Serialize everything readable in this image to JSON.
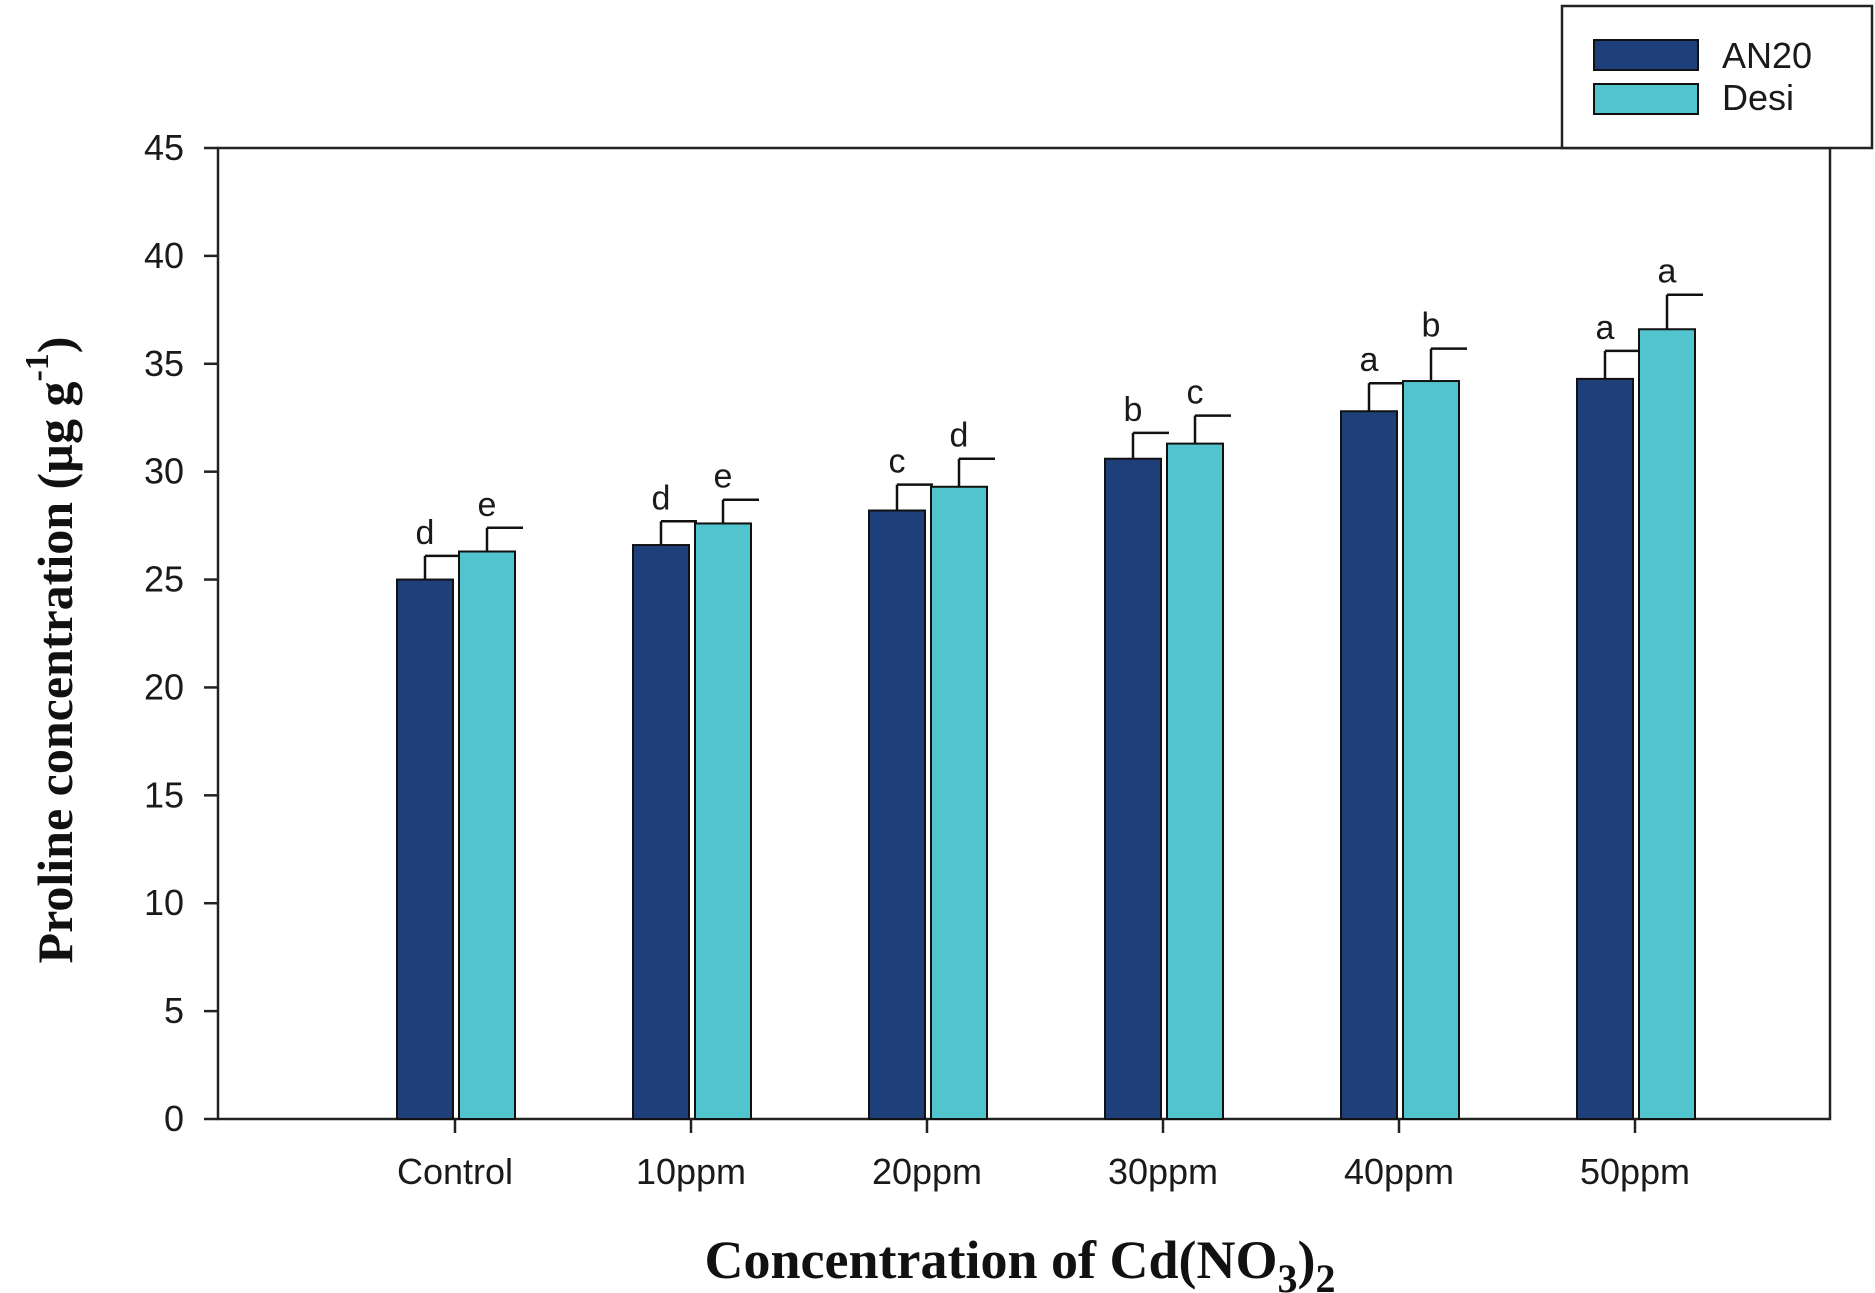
{
  "chart_data": {
    "type": "bar",
    "categories": [
      "Control",
      "10ppm",
      "20ppm",
      "30ppm",
      "40ppm",
      "50ppm"
    ],
    "series": [
      {
        "name": "AN20",
        "color": "#1f3f7a",
        "values": [
          25.0,
          26.6,
          28.2,
          30.6,
          32.8,
          34.3
        ],
        "errors": [
          1.1,
          1.1,
          1.2,
          1.2,
          1.3,
          1.3
        ],
        "letters": [
          "d",
          "d",
          "c",
          "b",
          "a",
          "a"
        ]
      },
      {
        "name": "Desi",
        "color": "#52c4ce",
        "values": [
          26.3,
          27.6,
          29.3,
          31.3,
          34.2,
          36.6
        ],
        "errors": [
          1.1,
          1.1,
          1.3,
          1.3,
          1.5,
          1.6
        ],
        "letters": [
          "e",
          "e",
          "d",
          "c",
          "b",
          "a"
        ]
      }
    ],
    "ylim": [
      0,
      45
    ],
    "yticks": [
      0,
      5,
      10,
      15,
      20,
      25,
      30,
      35,
      40,
      45
    ],
    "ylabel": {
      "main": "Proline concentration (µg g",
      "superscript": "-1",
      "close": ")"
    },
    "xlabel": {
      "main": "Concentration of Cd(NO",
      "sub1": "3",
      "mid": ")",
      "sub2": "2"
    },
    "legend_position": "top-right",
    "grid": false
  }
}
